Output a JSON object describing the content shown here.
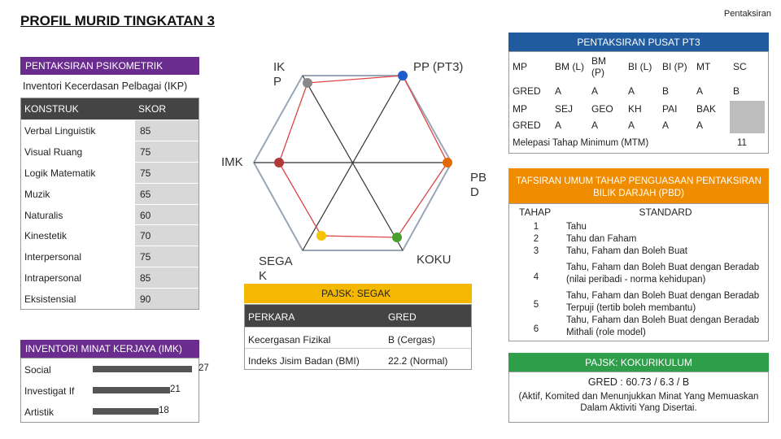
{
  "header": {
    "title": "PROFIL MURID TINGKATAN 3",
    "corner": "Pentaksiran"
  },
  "psikometrik": {
    "heading": "PENTAKSIRAN PSIKOMETRIK",
    "ikp_label": "Inventori Kecerdasan Pelbagai (IKP)",
    "col_konstruk": "KONSTRUK",
    "col_skor": "SKOR",
    "rows": [
      {
        "konstruk": "Verbal Linguistik",
        "skor": "85"
      },
      {
        "konstruk": "Visual Ruang",
        "skor": "75"
      },
      {
        "konstruk": "Logik Matematik",
        "skor": "75"
      },
      {
        "konstruk": "Muzik",
        "skor": "65"
      },
      {
        "konstruk": "Naturalis",
        "skor": "60"
      },
      {
        "konstruk": "Kinestetik",
        "skor": "70"
      },
      {
        "konstruk": "Interpersonal",
        "skor": "75"
      },
      {
        "konstruk": "Intrapersonal",
        "skor": "85"
      },
      {
        "konstruk": "Eksistensial",
        "skor": "90"
      }
    ]
  },
  "imk": {
    "heading": "INVENTORI MINAT KERJAYA (IMK)",
    "rows": [
      {
        "label": "Social",
        "value": 27
      },
      {
        "label": "Investigat If",
        "value": 21
      },
      {
        "label": "Artistik",
        "value": 18
      }
    ],
    "max": 27
  },
  "radar": {
    "labels": {
      "ikp": "IK\nP",
      "pp": "PP (PT3)",
      "imk": "IMK",
      "pbd": "PB\nD",
      "segak": "SEGA\nK",
      "koku": "KOKU"
    },
    "point_colors": {
      "ikp": "#888888",
      "pp": "#1f5bc9",
      "imk": "#b03a3a",
      "pbd": "#e06a00",
      "segak": "#f4c400",
      "koku": "#4aa02c"
    }
  },
  "segak": {
    "heading": "PAJSK: SEGAK",
    "col_perkara": "PERKARA",
    "col_gred": "GRED",
    "rows": [
      {
        "perkara": "Kecergasan Fizikal",
        "gred": "B (Cergas)"
      },
      {
        "perkara": "Indeks Jisim Badan (BMI)",
        "gred": "22.2 (Normal)"
      }
    ]
  },
  "pt3": {
    "heading": "PENTAKSIRAN PUSAT PT3",
    "row1": [
      "MP",
      "BM (L)",
      "BM (P)",
      "BI (L)",
      "BI (P)",
      "MT",
      "SC"
    ],
    "row2": [
      "GRED",
      "A",
      "A",
      "A",
      "B",
      "A",
      "B"
    ],
    "row3": [
      "MP",
      "SEJ",
      "GEO",
      "KH",
      "PAI",
      "BAK",
      ""
    ],
    "row4": [
      "GRED",
      "A",
      "A",
      "A",
      "A",
      "A",
      ""
    ],
    "mtm_label": "Melepasi Tahap Minimum (MTM)",
    "mtm_value": "11"
  },
  "tafsiran": {
    "heading": "TAFSIRAN UMUM TAHAP PENGUASAAN PENTAKSIRAN BILIK DARJAH (PBD)",
    "col_tahap": "TAHAP",
    "col_standard": "STANDARD",
    "rows": [
      {
        "tahap": "1",
        "standard": "Tahu"
      },
      {
        "tahap": "2",
        "standard": "Tahu dan Faham"
      },
      {
        "tahap": "3",
        "standard": "Tahu, Faham dan Boleh Buat"
      },
      {
        "tahap": "4",
        "standard": "Tahu, Faham dan Boleh Buat dengan Beradab (nilai peribadi - norma kehidupan)"
      },
      {
        "tahap": "5",
        "standard": "Tahu, Faham dan Boleh Buat dengan Beradab Terpuji (tertib boleh membantu)"
      },
      {
        "tahap": "6",
        "standard": "Tahu, Faham dan Boleh Buat dengan Beradab Mithali (role model)"
      }
    ]
  },
  "kokurikulum": {
    "heading": "PAJSK: KOKURIKULUM",
    "gred": "GRED : 60.73 / 6.3 / B",
    "desc": "(Aktif, Komited dan Menunjukkan Minat Yang Memuaskan Dalam Aktiviti Yang Disertai."
  }
}
